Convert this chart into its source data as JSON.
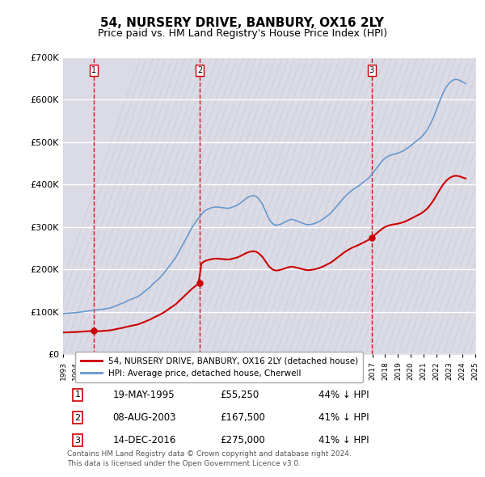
{
  "title": "54, NURSERY DRIVE, BANBURY, OX16 2LY",
  "subtitle": "Price paid vs. HM Land Registry's House Price Index (HPI)",
  "ylabel": "",
  "ylim": [
    0,
    700000
  ],
  "yticks": [
    0,
    100000,
    200000,
    300000,
    400000,
    500000,
    600000,
    700000
  ],
  "ytick_labels": [
    "£0",
    "£100K",
    "£200K",
    "£300K",
    "£400K",
    "£500K",
    "£600K",
    "£700K"
  ],
  "background_color": "#ffffff",
  "plot_bg_color": "#e8e8f0",
  "hatch_color": "#c8c8d8",
  "grid_color": "#ffffff",
  "sale_dates": [
    "1995-05-19",
    "2003-08-08",
    "2016-12-14"
  ],
  "sale_prices": [
    55250,
    167500,
    275000
  ],
  "sale_labels": [
    "1",
    "2",
    "3"
  ],
  "vline_color": "#cc0000",
  "red_line_color": "#cc0000",
  "blue_line_color": "#6699cc",
  "legend_label_red": "54, NURSERY DRIVE, BANBURY, OX16 2LY (detached house)",
  "legend_label_blue": "HPI: Average price, detached house, Cherwell",
  "table_rows": [
    [
      "1",
      "19-MAY-1995",
      "£55,250",
      "44% ↓ HPI"
    ],
    [
      "2",
      "08-AUG-2003",
      "£167,500",
      "41% ↓ HPI"
    ],
    [
      "3",
      "14-DEC-2016",
      "£275,000",
      "41% ↓ HPI"
    ]
  ],
  "footer_text": "Contains HM Land Registry data © Crown copyright and database right 2024.\nThis data is licensed under the Open Government Licence v3.0.",
  "title_fontsize": 11,
  "subtitle_fontsize": 9,
  "tick_fontsize": 8,
  "hpi_years": [
    1993,
    1993.25,
    1993.5,
    1993.75,
    1994,
    1994.25,
    1994.5,
    1994.75,
    1995,
    1995.25,
    1995.5,
    1995.75,
    1996,
    1996.25,
    1996.5,
    1996.75,
    1997,
    1997.25,
    1997.5,
    1997.75,
    1998,
    1998.25,
    1998.5,
    1998.75,
    1999,
    1999.25,
    1999.5,
    1999.75,
    2000,
    2000.25,
    2000.5,
    2000.75,
    2001,
    2001.25,
    2001.5,
    2001.75,
    2002,
    2002.25,
    2002.5,
    2002.75,
    2003,
    2003.25,
    2003.5,
    2003.75,
    2004,
    2004.25,
    2004.5,
    2004.75,
    2005,
    2005.25,
    2005.5,
    2005.75,
    2006,
    2006.25,
    2006.5,
    2006.75,
    2007,
    2007.25,
    2007.5,
    2007.75,
    2008,
    2008.25,
    2008.5,
    2008.75,
    2009,
    2009.25,
    2009.5,
    2009.75,
    2010,
    2010.25,
    2010.5,
    2010.75,
    2011,
    2011.25,
    2011.5,
    2011.75,
    2012,
    2012.25,
    2012.5,
    2012.75,
    2013,
    2013.25,
    2013.5,
    2013.75,
    2014,
    2014.25,
    2014.5,
    2014.75,
    2015,
    2015.25,
    2015.5,
    2015.75,
    2016,
    2016.25,
    2016.5,
    2016.75,
    2017,
    2017.25,
    2017.5,
    2017.75,
    2018,
    2018.25,
    2018.5,
    2018.75,
    2019,
    2019.25,
    2019.5,
    2019.75,
    2020,
    2020.25,
    2020.5,
    2020.75,
    2021,
    2021.25,
    2021.5,
    2021.75,
    2022,
    2022.25,
    2022.5,
    2022.75,
    2023,
    2023.25,
    2023.5,
    2023.75,
    2024,
    2024.25
  ],
  "hpi_values": [
    96000,
    96500,
    97000,
    97500,
    98000,
    99000,
    100000,
    101000,
    102000,
    103000,
    104000,
    105000,
    106000,
    107000,
    108000,
    110000,
    113000,
    116000,
    119000,
    122000,
    126000,
    129000,
    132000,
    135000,
    140000,
    146000,
    152000,
    158000,
    166000,
    173000,
    180000,
    188000,
    198000,
    208000,
    218000,
    228000,
    242000,
    256000,
    270000,
    284000,
    298000,
    310000,
    320000,
    330000,
    338000,
    342000,
    345000,
    347000,
    347000,
    346000,
    345000,
    344000,
    345000,
    348000,
    351000,
    356000,
    362000,
    368000,
    372000,
    374000,
    372000,
    364000,
    352000,
    335000,
    318000,
    308000,
    304000,
    305000,
    308000,
    312000,
    316000,
    318000,
    316000,
    313000,
    310000,
    307000,
    305000,
    306000,
    308000,
    311000,
    315000,
    320000,
    326000,
    332000,
    340000,
    349000,
    358000,
    367000,
    375000,
    382000,
    388000,
    393000,
    398000,
    404000,
    410000,
    416000,
    425000,
    435000,
    445000,
    455000,
    462000,
    467000,
    470000,
    472000,
    474000,
    477000,
    481000,
    486000,
    492000,
    498000,
    504000,
    510000,
    518000,
    528000,
    542000,
    558000,
    578000,
    598000,
    616000,
    630000,
    640000,
    646000,
    648000,
    646000,
    642000,
    638000
  ],
  "price_paid_years": [
    1995.38,
    2003.6,
    2016.96
  ],
  "price_paid_values": [
    55250,
    167500,
    275000
  ],
  "xmin": 1993,
  "xmax": 2025
}
